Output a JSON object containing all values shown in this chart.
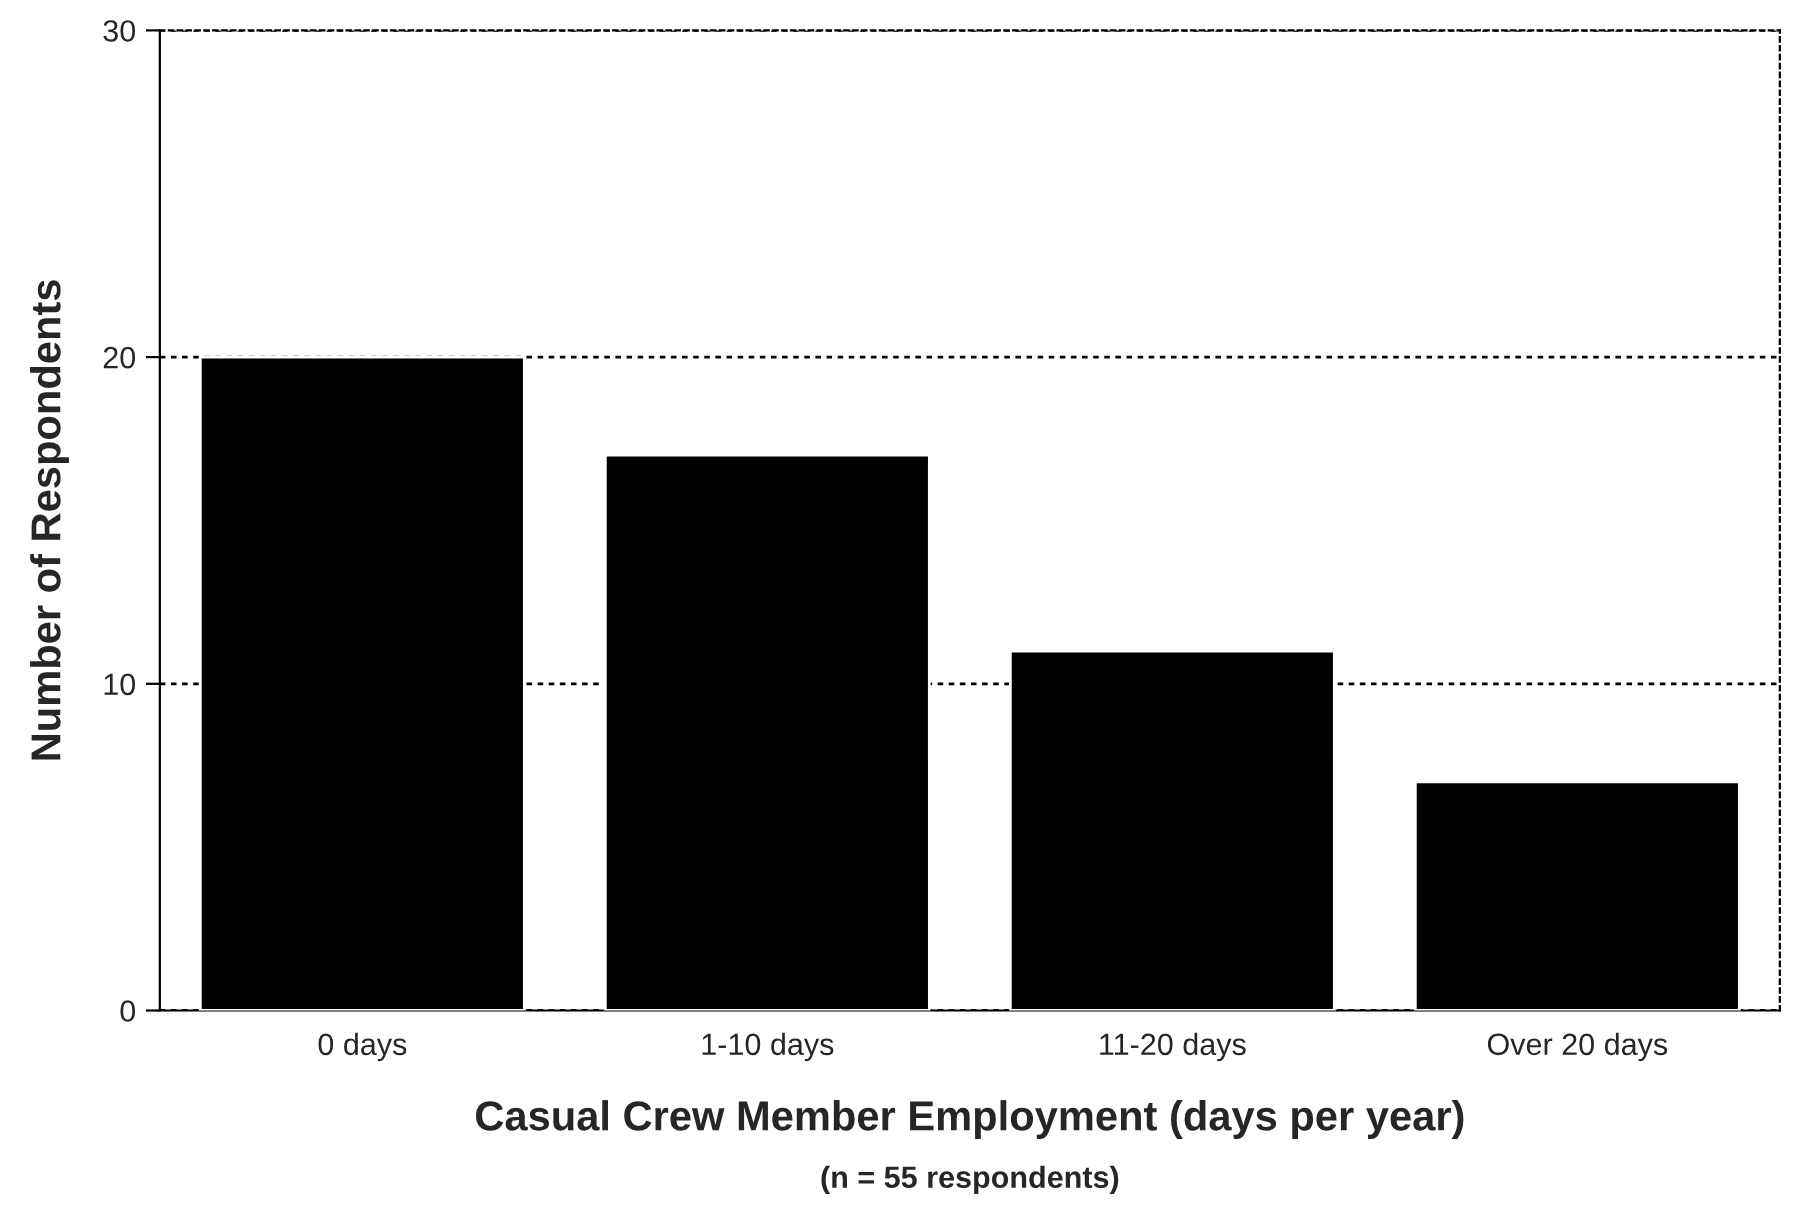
{
  "chart_data": {
    "type": "bar",
    "categories": [
      "0 days",
      "1-10 days",
      "11-20 days",
      "Over 20 days"
    ],
    "values": [
      20,
      17,
      11,
      7
    ],
    "color": "#000000",
    "xlabel": "Casual Crew Member Employment (days per year)",
    "ylabel": "Number of Respondents",
    "annotations": [
      "(n = 55 respondents)"
    ],
    "ylim": [
      0,
      30
    ],
    "yticks": [
      0,
      10,
      20,
      30
    ],
    "grid": "y",
    "legend": false
  }
}
